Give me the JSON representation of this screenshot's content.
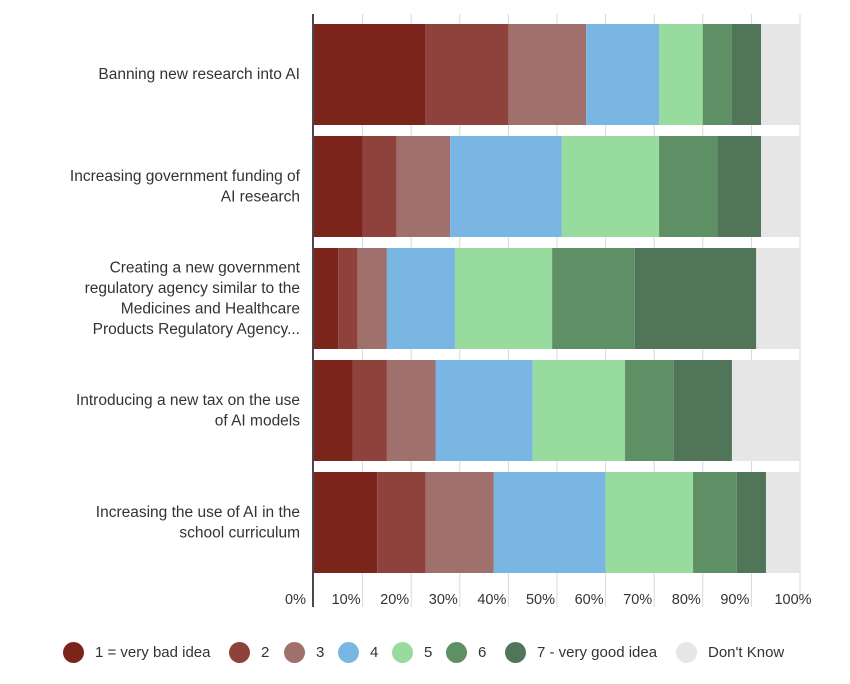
{
  "chart_data": {
    "type": "bar",
    "orientation": "horizontal",
    "stacked": true,
    "percent": true,
    "categories": [
      "Banning new research into AI",
      "Increasing government funding of AI research",
      "Creating a new government regulatory agency similar to the Medicines and Healthcare Products Regulatory Agency...",
      "Introducing a new tax on the use of AI models",
      "Increasing the use of AI in the school curriculum"
    ],
    "category_lines": [
      [
        "Banning new research into AI"
      ],
      [
        "Increasing government funding of",
        "AI research"
      ],
      [
        "Creating a new government",
        "regulatory agency similar to the",
        "Medicines and Healthcare",
        "Products Regulatory Agency..."
      ],
      [
        "Introducing a new tax on the use",
        "of AI models"
      ],
      [
        "Increasing the use of AI in the",
        "school curriculum"
      ]
    ],
    "series": [
      {
        "name": "1 = very bad idea",
        "color": "#7b241c",
        "values": [
          23,
          10,
          5,
          8,
          13
        ]
      },
      {
        "name": "2",
        "color": "#8f423b",
        "values": [
          17,
          7,
          4,
          7,
          10
        ]
      },
      {
        "name": "3",
        "color": "#a0706d",
        "values": [
          16,
          11,
          6,
          10,
          14
        ]
      },
      {
        "name": "4",
        "color": "#79b6e3",
        "values": [
          15,
          23,
          14,
          20,
          23
        ]
      },
      {
        "name": "5",
        "color": "#97db9e",
        "values": [
          9,
          20,
          20,
          19,
          18
        ]
      },
      {
        "name": "6",
        "color": "#5e8f65",
        "values": [
          6,
          12,
          17,
          10,
          9
        ]
      },
      {
        "name": "7 - very good idea",
        "color": "#517558",
        "values": [
          6,
          9,
          25,
          12,
          6
        ]
      },
      {
        "name": "Don't Know",
        "color": "#e6e6e6",
        "values": [
          8,
          8,
          9,
          14,
          7
        ]
      }
    ],
    "x_ticks": [
      "0%",
      "10%",
      "20%",
      "30%",
      "40%",
      "50%",
      "60%",
      "70%",
      "80%",
      "90%",
      "100%"
    ],
    "xlim": [
      0,
      100
    ],
    "grid": true,
    "legend_position": "bottom"
  }
}
